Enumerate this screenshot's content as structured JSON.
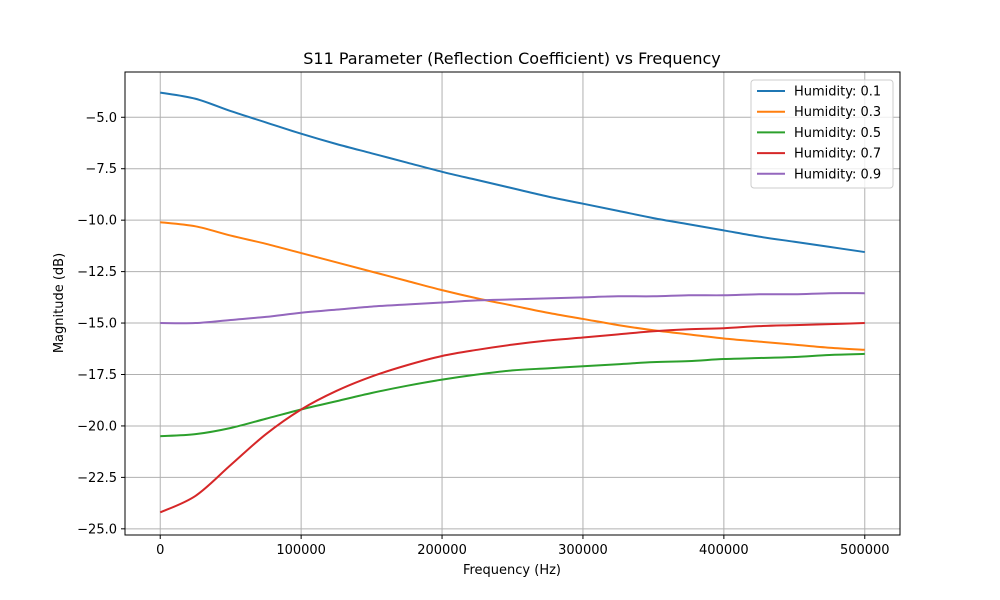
{
  "chart_data": {
    "type": "line",
    "title": "S11 Parameter (Reflection Coefficient) vs Frequency",
    "xlabel": "Frequency (Hz)",
    "ylabel": "Magnitude (dB)",
    "xlim": [
      -25000,
      525000
    ],
    "ylim": [
      -25.3,
      -2.8
    ],
    "xticks": [
      0,
      100000,
      200000,
      300000,
      400000,
      500000
    ],
    "xtick_labels": [
      "0",
      "100000",
      "200000",
      "300000",
      "400000",
      "500000"
    ],
    "yticks": [
      -25.0,
      -22.5,
      -20.0,
      -17.5,
      -15.0,
      -12.5,
      -10.0,
      -7.5,
      -5.0
    ],
    "ytick_labels": [
      "−25.0",
      "−22.5",
      "−20.0",
      "−17.5",
      "−15.0",
      "−12.5",
      "−10.0",
      "−7.5",
      "−5.0"
    ],
    "grid": true,
    "legend_position": "top-right",
    "x": [
      0,
      25000,
      50000,
      75000,
      100000,
      125000,
      150000,
      175000,
      200000,
      225000,
      250000,
      275000,
      300000,
      325000,
      350000,
      375000,
      400000,
      425000,
      450000,
      475000,
      500000
    ],
    "series": [
      {
        "name": "Humidity: 0.1",
        "color": "#1f77b4",
        "values": [
          -3.8,
          -4.1,
          -4.7,
          -5.25,
          -5.8,
          -6.3,
          -6.75,
          -7.2,
          -7.65,
          -8.05,
          -8.45,
          -8.85,
          -9.2,
          -9.55,
          -9.9,
          -10.2,
          -10.5,
          -10.8,
          -11.05,
          -11.3,
          -11.55
        ]
      },
      {
        "name": "Humidity: 0.3",
        "color": "#ff7f0e",
        "values": [
          -10.1,
          -10.3,
          -10.75,
          -11.15,
          -11.6,
          -12.05,
          -12.5,
          -12.95,
          -13.4,
          -13.8,
          -14.15,
          -14.5,
          -14.8,
          -15.1,
          -15.35,
          -15.55,
          -15.75,
          -15.9,
          -16.05,
          -16.2,
          -16.3
        ]
      },
      {
        "name": "Humidity: 0.5",
        "color": "#2ca02c",
        "values": [
          -20.5,
          -20.4,
          -20.1,
          -19.65,
          -19.2,
          -18.8,
          -18.4,
          -18.05,
          -17.75,
          -17.5,
          -17.3,
          -17.2,
          -17.1,
          -17.0,
          -16.9,
          -16.85,
          -16.75,
          -16.7,
          -16.65,
          -16.55,
          -16.5
        ]
      },
      {
        "name": "Humidity: 0.7",
        "color": "#d62728",
        "values": [
          -24.2,
          -23.4,
          -21.9,
          -20.4,
          -19.2,
          -18.3,
          -17.6,
          -17.05,
          -16.6,
          -16.3,
          -16.05,
          -15.85,
          -15.7,
          -15.55,
          -15.4,
          -15.3,
          -15.25,
          -15.15,
          -15.1,
          -15.05,
          -15.0
        ]
      },
      {
        "name": "Humidity: 0.9",
        "color": "#9467bd",
        "values": [
          -15.0,
          -15.0,
          -14.85,
          -14.7,
          -14.5,
          -14.35,
          -14.2,
          -14.1,
          -14.0,
          -13.9,
          -13.85,
          -13.8,
          -13.75,
          -13.7,
          -13.7,
          -13.65,
          -13.65,
          -13.6,
          -13.6,
          -13.55,
          -13.55
        ]
      }
    ]
  }
}
